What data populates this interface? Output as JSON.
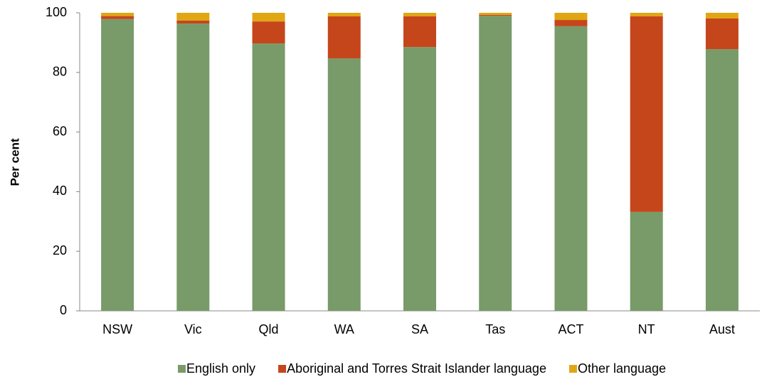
{
  "chart_data": {
    "type": "stacked_bar",
    "y_label": "Per cent",
    "categories": [
      "NSW",
      "Vic",
      "Qld",
      "WA",
      "SA",
      "Tas",
      "ACT",
      "NT",
      "Aust"
    ],
    "series": [
      {
        "name": "English only",
        "color": "#789b69",
        "values": [
          97.9,
          96.4,
          89.7,
          84.7,
          88.5,
          99.0,
          95.5,
          33.2,
          87.8
        ]
      },
      {
        "name": "Aboriginal and Torres Strait Islander language",
        "color": "#c5461b",
        "values": [
          1.0,
          1.0,
          7.4,
          14.1,
          10.3,
          0.3,
          2.1,
          65.6,
          10.3
        ]
      },
      {
        "name": "Other language",
        "color": "#e0a614",
        "values": [
          1.1,
          2.6,
          2.9,
          1.2,
          1.2,
          0.7,
          2.4,
          1.2,
          1.9
        ]
      }
    ],
    "ylim": [
      0,
      100
    ],
    "yticks": [
      0,
      20,
      40,
      60,
      80,
      100
    ],
    "grid": false,
    "legend": "bottom"
  }
}
